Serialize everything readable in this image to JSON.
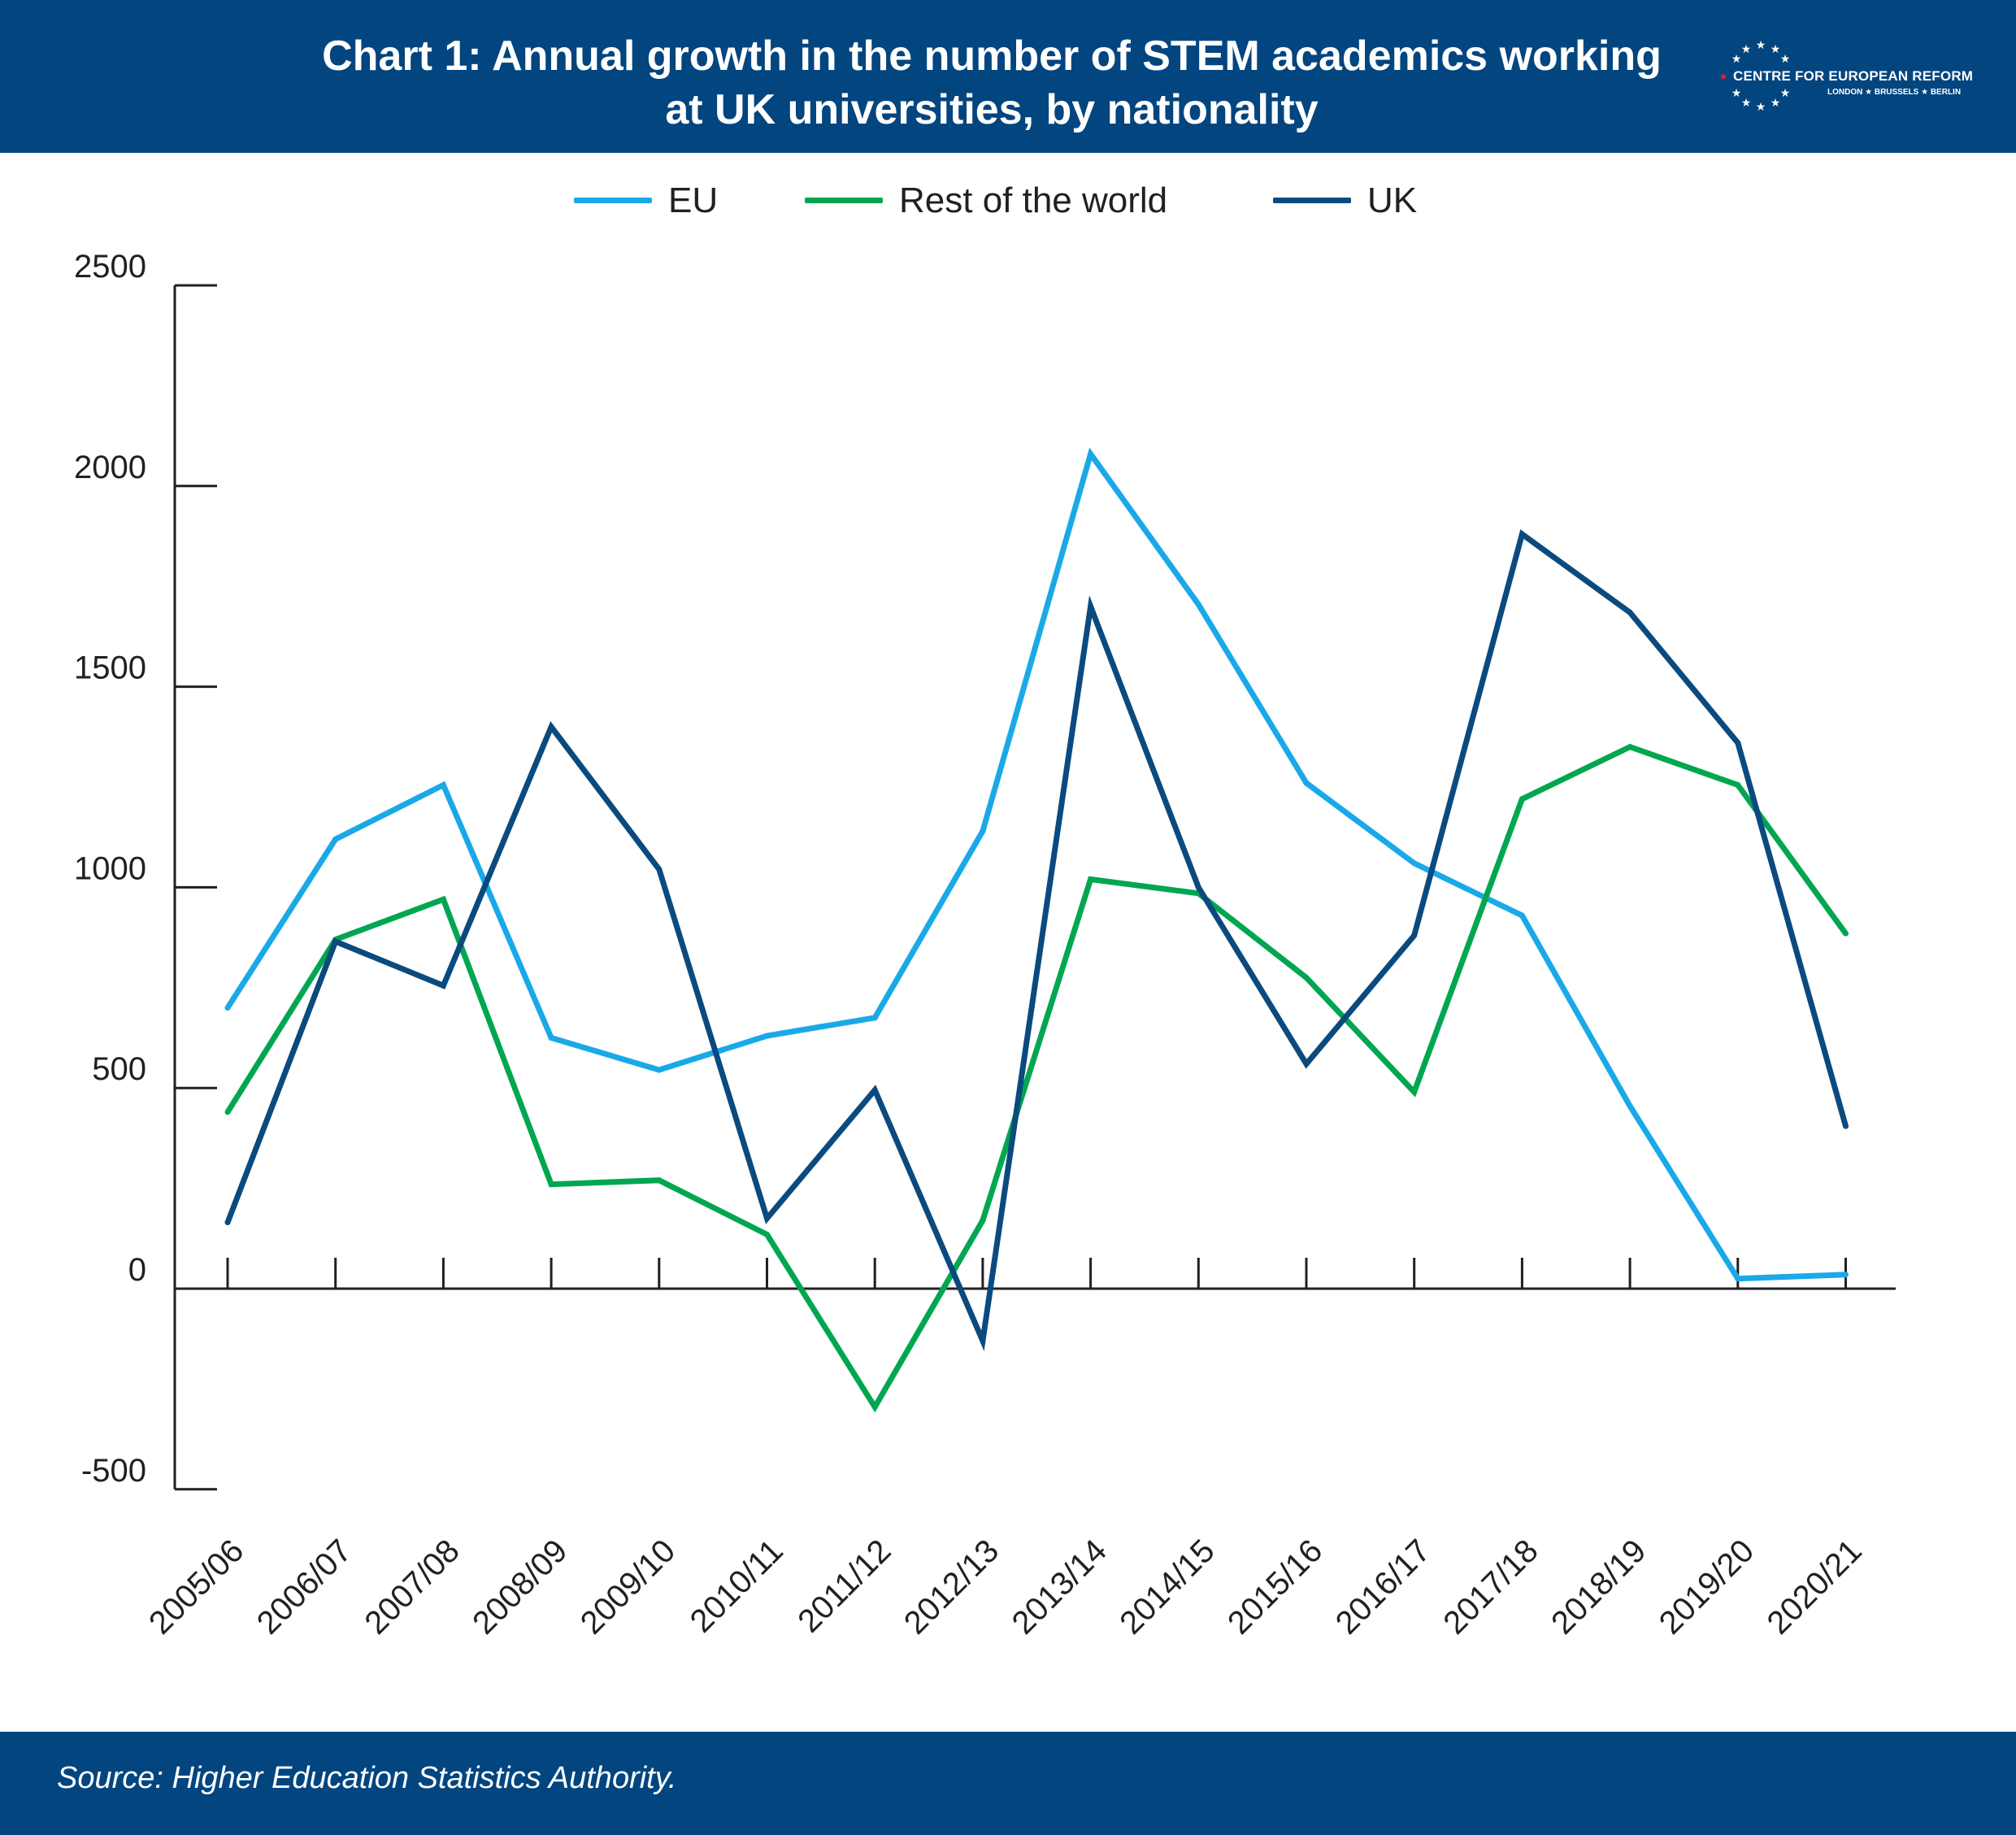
{
  "header": {
    "title_line1": "Chart 1: Annual growth in the number of STEM academics working",
    "title_line2": "at UK universities, by nationality",
    "logo_text": "CENTRE FOR EUROPEAN REFORM",
    "logo_sub": "LONDON ★ BRUSSELS ★ BERLIN"
  },
  "footer": {
    "source": "Source: Higher Education Statistics Authority."
  },
  "chart_data": {
    "type": "line",
    "title": "Chart 1: Annual growth in the number of STEM academics working at UK universities, by nationality",
    "xlabel": "",
    "ylabel": "",
    "ylim": [
      -500,
      2500
    ],
    "yticks": [
      -500,
      0,
      500,
      1000,
      1500,
      2000,
      2500
    ],
    "grid": false,
    "legend_position": "top-center",
    "categories": [
      "2005/06",
      "2006/07",
      "2007/08",
      "2008/09",
      "2009/10",
      "2010/11",
      "2011/12",
      "2012/13",
      "2013/14",
      "2014/15",
      "2015/16",
      "2016/17",
      "2017/18",
      "2018/19",
      "2019/20",
      "2020/21"
    ],
    "series": [
      {
        "name": "EU",
        "color": "#1aa9e8",
        "values": [
          700,
          1120,
          1255,
          625,
          545,
          630,
          675,
          1140,
          2080,
          1705,
          1260,
          1060,
          930,
          455,
          25,
          35
        ]
      },
      {
        "name": "Rest of the world",
        "color": "#00a650",
        "values": [
          440,
          870,
          970,
          260,
          270,
          135,
          -295,
          170,
          1020,
          985,
          775,
          490,
          1220,
          1350,
          1255,
          885
        ]
      },
      {
        "name": "UK",
        "color": "#0a4a7f",
        "values": [
          165,
          865,
          755,
          1400,
          1045,
          175,
          495,
          -130,
          1700,
          1000,
          560,
          880,
          1880,
          1685,
          1360,
          405
        ]
      }
    ]
  }
}
